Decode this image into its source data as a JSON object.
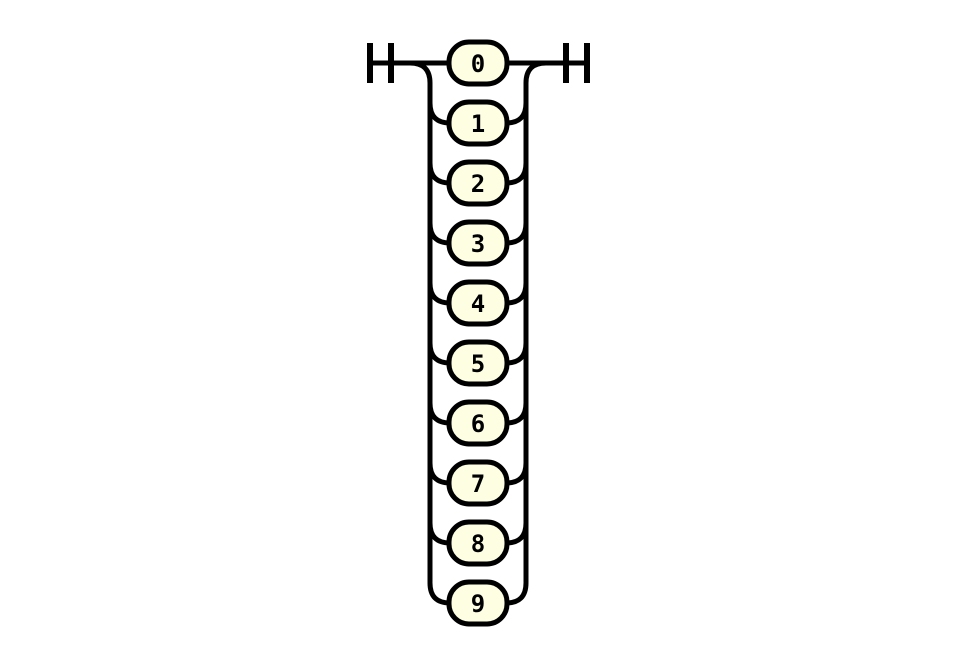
{
  "diagram": {
    "type": "railroad-choice",
    "terminal_fill": "#fefee2",
    "line_color": "#000000",
    "terminals": [
      "0",
      "1",
      "2",
      "3",
      "4",
      "5",
      "6",
      "7",
      "8",
      "9"
    ]
  }
}
